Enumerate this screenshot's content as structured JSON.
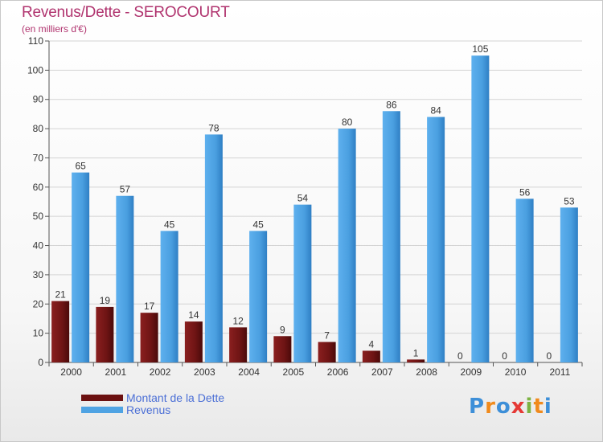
{
  "header": {
    "title": "Revenus/Dette - SEROCOURT",
    "subtitle": "(en milliers d'€)"
  },
  "chart_data": {
    "type": "bar",
    "title": "Revenus/Dette - SEROCOURT",
    "subtitle": "(en milliers d'€)",
    "categories": [
      "2000",
      "2001",
      "2002",
      "2003",
      "2004",
      "2005",
      "2006",
      "2007",
      "2008",
      "2009",
      "2010",
      "2011"
    ],
    "series": [
      {
        "name": "Montant de la Dette",
        "color": "#7a1a1a",
        "values": [
          21,
          19,
          17,
          14,
          12,
          9,
          7,
          4,
          1,
          0,
          0,
          0
        ]
      },
      {
        "name": "Revenus",
        "color": "#4fa3e3",
        "values": [
          65,
          57,
          45,
          78,
          45,
          54,
          80,
          86,
          84,
          105,
          56,
          53
        ]
      }
    ],
    "ylim": [
      0,
      110
    ],
    "yticks": [
      0,
      10,
      20,
      30,
      40,
      50,
      60,
      70,
      80,
      90,
      100,
      110
    ],
    "grid": true,
    "legend": "bottom-left"
  },
  "legend": {
    "items": [
      {
        "label": "Montant de la Dette",
        "color": "#6b1010"
      },
      {
        "label": "Revenus",
        "color": "#4fa3e3"
      }
    ]
  },
  "logo": {
    "text": "Proxiti",
    "letters": [
      {
        "ch": "P",
        "color": "#3d8fd8"
      },
      {
        "ch": "r",
        "color": "#f08a1c"
      },
      {
        "ch": "o",
        "color": "#3d8fd8"
      },
      {
        "ch": "x",
        "color": "#e53935"
      },
      {
        "ch": "i",
        "color": "#7cb342"
      },
      {
        "ch": "t",
        "color": "#f08a1c"
      },
      {
        "ch": "i",
        "color": "#3d8fd8"
      }
    ]
  }
}
